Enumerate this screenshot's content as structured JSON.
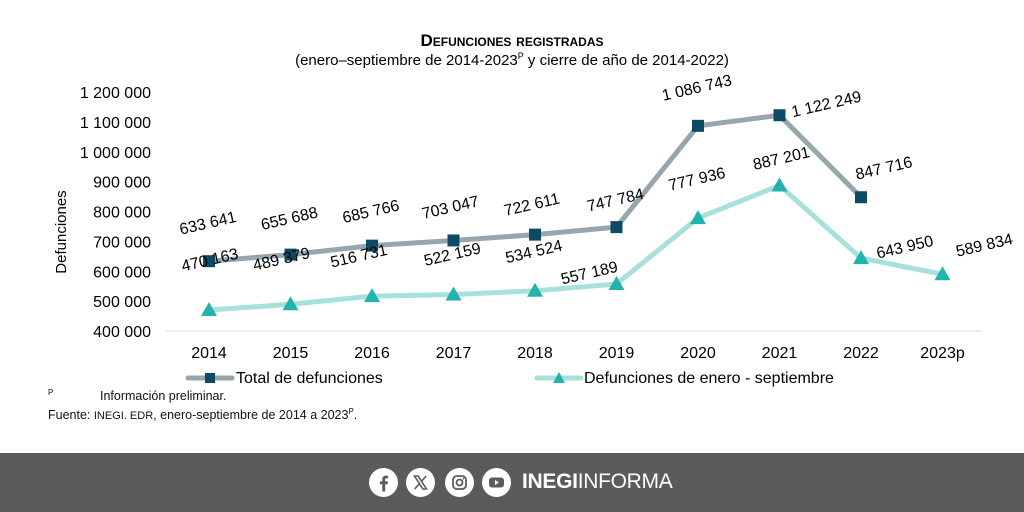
{
  "chart_data": {
    "type": "line",
    "title": "Defunciones registradas",
    "subtitle_pre": "(enero–septiembre de 2014-2023",
    "subtitle_sup": "P",
    "subtitle_post": " y cierre de año de 2014-2022)",
    "ylabel": "Defunciones",
    "xlabel": "",
    "ylim": [
      400000,
      1200000
    ],
    "yticks": [
      {
        "value": 400000,
        "label": "400 000"
      },
      {
        "value": 500000,
        "label": "500 000"
      },
      {
        "value": 600000,
        "label": "600 000"
      },
      {
        "value": 700000,
        "label": "700 000"
      },
      {
        "value": 800000,
        "label": "800 000"
      },
      {
        "value": 900000,
        "label": "900 000"
      },
      {
        "value": 1000000,
        "label": "1 000 000"
      },
      {
        "value": 1100000,
        "label": "1 100 000"
      },
      {
        "value": 1200000,
        "label": "1 200 000"
      }
    ],
    "categories": [
      "2014",
      "2015",
      "2016",
      "2017",
      "2018",
      "2019",
      "2020",
      "2021",
      "2022",
      "2023p"
    ],
    "series": [
      {
        "name": "Total de defunciones",
        "line_color": "#97a6ad",
        "marker_color": "#0e4a63",
        "marker": "square",
        "values": [
          633641,
          655688,
          685766,
          703047,
          722611,
          747784,
          1086743,
          1122249,
          847716,
          null
        ],
        "labels": [
          "633 641",
          "655 688",
          "685 766",
          "703 047",
          "722 611",
          "747 784",
          "1 086 743",
          "1 122 249",
          "847 716",
          null
        ]
      },
      {
        "name": "Defunciones de enero - septiembre",
        "line_color": "#a8e0dc",
        "marker_color": "#22b3ad",
        "marker": "triangle",
        "values": [
          470163,
          489379,
          516731,
          522159,
          534524,
          557189,
          777936,
          887201,
          643950,
          589834
        ],
        "labels": [
          "470 163",
          "489 379",
          "516 731",
          "522 159",
          "534 524",
          "557 189",
          "777 936",
          "887 201",
          "643 950",
          "589 834"
        ]
      }
    ],
    "legend": "bottom",
    "grid": false
  },
  "notes": {
    "preliminary_mark": "P",
    "preliminary_text": "Información preliminar.",
    "source_label": "Fuente:",
    "source_org": "INEGI. EDR",
    "source_text": ", enero-septiembre de 2014 a 2023",
    "source_sup": "P",
    "source_end": "."
  },
  "footer": {
    "brand_bold": "INEGI",
    "brand_light": "INFORMA",
    "icons": [
      "facebook-icon",
      "x-icon",
      "instagram-icon",
      "youtube-icon"
    ]
  }
}
